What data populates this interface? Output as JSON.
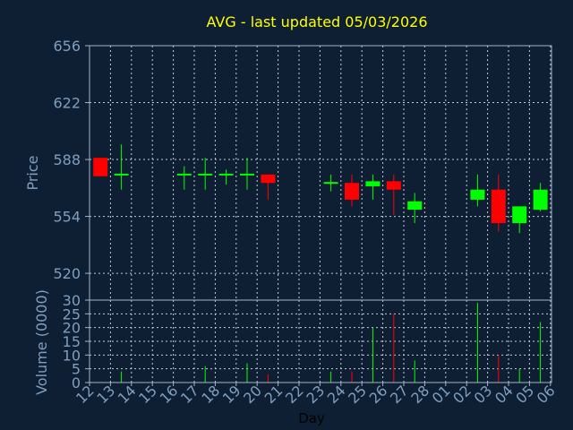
{
  "chart_data": [
    {
      "type": "candlestick",
      "title": "AVG - last updated 05/03/2026",
      "ylabel": "Price",
      "ylim": [
        504,
        656
      ],
      "yticks": [
        656,
        622,
        588,
        554,
        520
      ],
      "grid": true,
      "x_tick_labels": [
        "12",
        "13",
        "14",
        "15",
        "16",
        "17",
        "18",
        "19",
        "20",
        "21",
        "22",
        "23",
        "24",
        "25",
        "26",
        "27",
        "28",
        "01",
        "02",
        "03",
        "04",
        "05",
        "06"
      ],
      "up_color": "#00ff00",
      "down_color": "#ff0000",
      "candles": [
        {
          "day": "12",
          "open": 589,
          "high": 589,
          "low": 578,
          "close": 578
        },
        {
          "day": "13",
          "open": 579,
          "high": 597,
          "low": 570,
          "close": 579
        },
        {
          "day": "16",
          "open": 579,
          "high": 584,
          "low": 570,
          "close": 579
        },
        {
          "day": "17",
          "open": 579,
          "high": 589,
          "low": 570,
          "close": 579
        },
        {
          "day": "18",
          "open": 579,
          "high": 582,
          "low": 573,
          "close": 579
        },
        {
          "day": "19",
          "open": 579,
          "high": 589,
          "low": 570,
          "close": 579
        },
        {
          "day": "20",
          "open": 579,
          "high": 579,
          "low": 564,
          "close": 574
        },
        {
          "day": "23",
          "open": 574,
          "high": 579,
          "low": 569,
          "close": 574
        },
        {
          "day": "24",
          "open": 574,
          "high": 579,
          "low": 560,
          "close": 564
        },
        {
          "day": "25",
          "open": 572,
          "high": 579,
          "low": 564,
          "close": 575
        },
        {
          "day": "26",
          "open": 575,
          "high": 579,
          "low": 555,
          "close": 570
        },
        {
          "day": "27",
          "open": 558,
          "high": 568,
          "low": 550,
          "close": 563
        },
        {
          "day": "02",
          "open": 564,
          "high": 579,
          "low": 560,
          "close": 570
        },
        {
          "day": "03",
          "open": 570,
          "high": 579,
          "low": 545,
          "close": 550
        },
        {
          "day": "04",
          "open": 550,
          "high": 560,
          "low": 544,
          "close": 560
        },
        {
          "day": "05",
          "open": 558,
          "high": 574,
          "low": 557,
          "close": 570
        }
      ]
    },
    {
      "type": "bar",
      "ylabel": "Volume (0000)",
      "xlabel": "Day",
      "ylim": [
        0,
        30
      ],
      "yticks": [
        30,
        25,
        20,
        15,
        10,
        5,
        0
      ],
      "grid": true,
      "categories": [
        "12",
        "13",
        "14",
        "15",
        "16",
        "17",
        "18",
        "19",
        "20",
        "21",
        "22",
        "23",
        "24",
        "25",
        "26",
        "27",
        "28",
        "01",
        "02",
        "03",
        "04",
        "05",
        "06"
      ],
      "values": [
        0,
        4,
        0,
        0,
        0,
        6,
        0,
        7,
        3,
        0,
        0,
        4,
        4,
        20,
        25,
        8,
        0,
        0,
        29,
        10,
        5,
        22,
        0
      ],
      "bar_colors": [
        "#00ff00",
        "#00ff00",
        "#00ff00",
        "#00ff00",
        "#00ff00",
        "#00ff00",
        "#00ff00",
        "#00ff00",
        "#ff0000",
        "#00ff00",
        "#00ff00",
        "#00ff00",
        "#ff0000",
        "#00ff00",
        "#ff0000",
        "#00ff00",
        "#00ff00",
        "#00ff00",
        "#00ff00",
        "#ff0000",
        "#00ff00",
        "#00ff00",
        "#00ff00"
      ]
    }
  ],
  "colors": {
    "background": "#0f1f33",
    "title": "#ffff00",
    "axis_text": "#7f9fbf",
    "axis_line": "#a0b4c8",
    "grid": "#c0ccd8",
    "x_label": "#000000"
  }
}
